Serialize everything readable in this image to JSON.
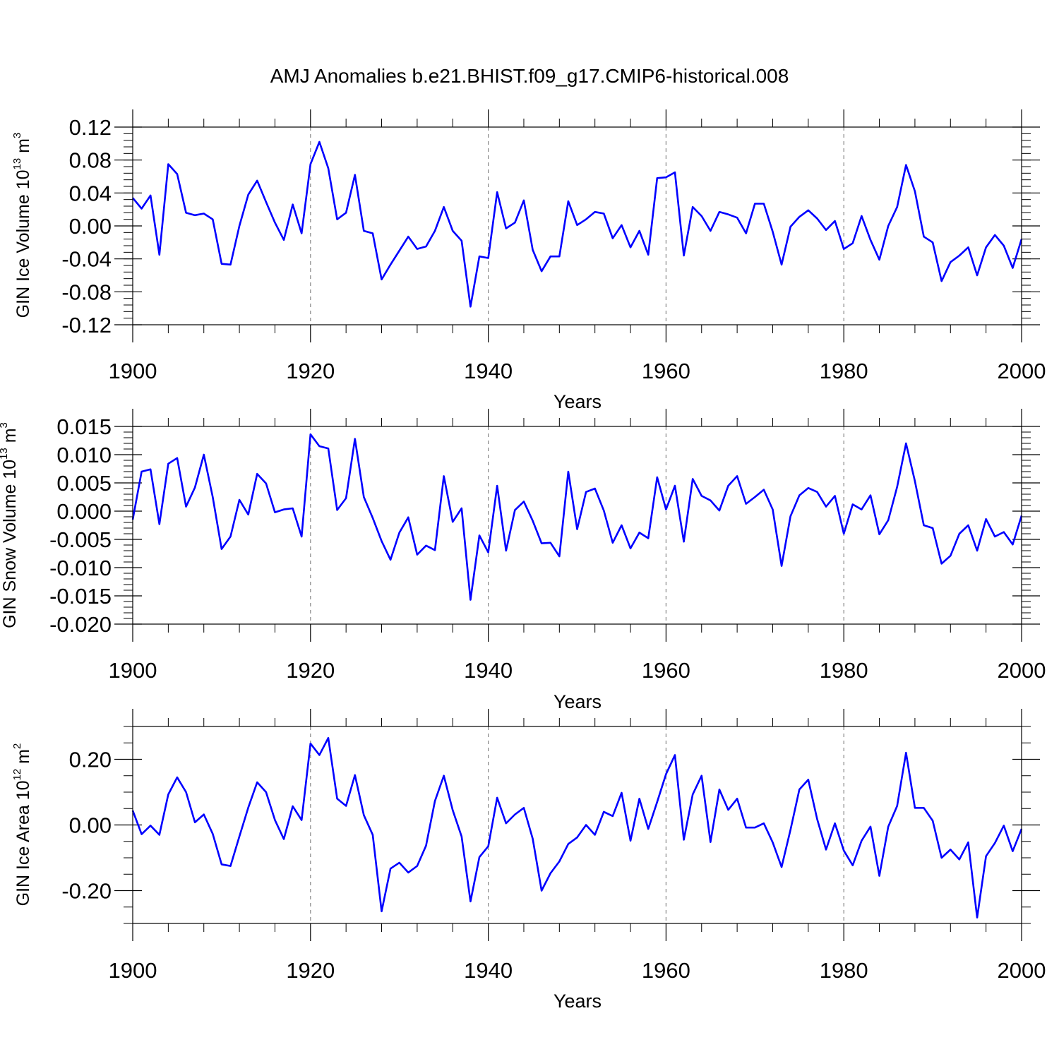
{
  "title": "AMJ Anomalies b.e21.BHIST.f09_g17.CMIP6-historical.008",
  "line_color": "#0000ff",
  "chart_data": [
    {
      "type": "line",
      "name": "ice-volume",
      "ylabel_main": "GIN Ice Volume 10",
      "ylabel_exp": "13",
      "ylabel_unit": " m",
      "ylabel_unit_exp": "3",
      "xlabel": "Years",
      "xlim": [
        1900,
        2000
      ],
      "ylim": [
        -0.12,
        0.12
      ],
      "yticks": [
        -0.12,
        -0.08,
        -0.04,
        0.0,
        0.04,
        0.08,
        0.12
      ],
      "ytick_labels": [
        "-0.12",
        "-0.08",
        "-0.04",
        "0.00",
        "0.04",
        "0.08",
        "0.12"
      ],
      "yminor_step": 0.008,
      "xticks": [
        1900,
        1920,
        1940,
        1960,
        1980,
        2000
      ],
      "xtick_labels": [
        "1900",
        "1920",
        "1940",
        "1960",
        "1980",
        "2000"
      ],
      "grid_x": [
        1920,
        1940,
        1960,
        1980
      ],
      "x_start": 1900,
      "values": [
        0.034,
        0.021,
        0.037,
        -0.035,
        0.075,
        0.063,
        0.016,
        0.013,
        0.015,
        0.008,
        -0.046,
        -0.047,
        0.0,
        0.038,
        0.055,
        0.029,
        0.004,
        -0.017,
        0.026,
        -0.009,
        0.075,
        0.102,
        0.07,
        0.008,
        0.016,
        0.062,
        -0.006,
        -0.009,
        -0.065,
        -0.047,
        -0.03,
        -0.013,
        -0.028,
        -0.025,
        -0.006,
        0.023,
        -0.006,
        -0.018,
        -0.098,
        -0.037,
        -0.039,
        0.041,
        -0.003,
        0.004,
        0.031,
        -0.029,
        -0.055,
        -0.037,
        -0.037,
        0.03,
        0.001,
        0.008,
        0.017,
        0.015,
        -0.015,
        0.001,
        -0.026,
        -0.006,
        -0.035,
        0.058,
        0.059,
        0.065,
        -0.036,
        0.023,
        0.012,
        -0.006,
        0.017,
        0.014,
        0.01,
        -0.009,
        0.027,
        0.027,
        -0.007,
        -0.047,
        -0.001,
        0.011,
        0.019,
        0.009,
        -0.005,
        0.006,
        -0.028,
        -0.021,
        0.012,
        -0.017,
        -0.041,
        0.0,
        0.023,
        0.074,
        0.042,
        -0.013,
        -0.02,
        -0.067,
        -0.044,
        -0.036,
        -0.026,
        -0.06,
        -0.026,
        -0.011,
        -0.024,
        -0.051,
        -0.016
      ]
    },
    {
      "type": "line",
      "name": "snow-volume",
      "ylabel_main": "GIN Snow Volume 10",
      "ylabel_exp": "13",
      "ylabel_unit": " m",
      "ylabel_unit_exp": "3",
      "xlabel": "Years",
      "xlim": [
        1900,
        2000
      ],
      "ylim": [
        -0.02,
        0.015
      ],
      "yticks": [
        -0.02,
        -0.015,
        -0.01,
        -0.005,
        0.0,
        0.005,
        0.01,
        0.015
      ],
      "ytick_labels": [
        "-0.020",
        "-0.015",
        "-0.010",
        "-0.005",
        "0.000",
        "0.005",
        "0.010",
        "0.015"
      ],
      "yminor_step": 0.001,
      "xticks": [
        1900,
        1920,
        1940,
        1960,
        1980,
        2000
      ],
      "xtick_labels": [
        "1900",
        "1920",
        "1940",
        "1960",
        "1980",
        "2000"
      ],
      "grid_x": [
        1920,
        1940,
        1960,
        1980
      ],
      "x_start": 1900,
      "values": [
        -0.0015,
        0.007,
        0.0074,
        -0.0023,
        0.0084,
        0.0094,
        0.0008,
        0.0042,
        0.01,
        0.0025,
        -0.0067,
        -0.0045,
        0.002,
        -0.0006,
        0.0066,
        0.0049,
        -0.0002,
        0.0003,
        0.0005,
        -0.0045,
        0.0136,
        0.0115,
        0.0111,
        0.0002,
        0.0023,
        0.0128,
        0.0025,
        -0.0012,
        -0.0053,
        -0.0086,
        -0.0038,
        -0.0011,
        -0.0077,
        -0.0061,
        -0.0069,
        0.0062,
        -0.0019,
        0.0005,
        -0.0157,
        -0.0043,
        -0.0073,
        0.0045,
        -0.007,
        0.0002,
        0.0017,
        -0.0017,
        -0.0057,
        -0.0056,
        -0.008,
        0.007,
        -0.0032,
        0.0034,
        0.004,
        0.0001,
        -0.0056,
        -0.0025,
        -0.0066,
        -0.0038,
        -0.0048,
        0.006,
        0.0003,
        0.0045,
        -0.0054,
        0.0057,
        0.0027,
        0.0019,
        0.0001,
        0.0045,
        0.0062,
        0.0013,
        0.0025,
        0.0038,
        0.0003,
        -0.0097,
        -0.0009,
        0.0028,
        0.0041,
        0.0034,
        0.0008,
        0.0027,
        -0.004,
        0.0012,
        0.0003,
        0.0028,
        -0.0041,
        -0.0016,
        0.0043,
        0.012,
        0.0053,
        -0.0025,
        -0.003,
        -0.0093,
        -0.0079,
        -0.004,
        -0.0025,
        -0.007,
        -0.0014,
        -0.0045,
        -0.0037,
        -0.0059,
        -0.0008
      ]
    },
    {
      "type": "line",
      "name": "ice-area",
      "ylabel_main": "GIN Ice Area 10",
      "ylabel_exp": "12",
      "ylabel_unit": " m",
      "ylabel_unit_exp": "2",
      "xlabel": "Years",
      "xlim": [
        1900,
        2000
      ],
      "ylim": [
        -0.3,
        0.3
      ],
      "yticks": [
        -0.2,
        0.0,
        0.2
      ],
      "ytick_labels": [
        "-0.20",
        "0.00",
        "0.20"
      ],
      "yminor_step": 0.05,
      "xticks": [
        1900,
        1920,
        1940,
        1960,
        1980,
        2000
      ],
      "xtick_labels": [
        "1900",
        "1920",
        "1940",
        "1960",
        "1980",
        "2000"
      ],
      "grid_x": [
        1920,
        1940,
        1960,
        1980
      ],
      "x_start": 1900,
      "values": [
        0.044,
        -0.028,
        -0.002,
        -0.03,
        0.093,
        0.145,
        0.1,
        0.008,
        0.032,
        -0.027,
        -0.12,
        -0.125,
        -0.035,
        0.053,
        0.13,
        0.1,
        0.015,
        -0.043,
        0.057,
        0.015,
        0.248,
        0.213,
        0.265,
        0.08,
        0.058,
        0.152,
        0.03,
        -0.03,
        -0.263,
        -0.133,
        -0.115,
        -0.145,
        -0.125,
        -0.063,
        0.073,
        0.15,
        0.045,
        -0.035,
        -0.233,
        -0.098,
        -0.065,
        0.083,
        0.005,
        0.032,
        0.052,
        -0.042,
        -0.2,
        -0.147,
        -0.111,
        -0.058,
        -0.038,
        0.0,
        -0.03,
        0.04,
        0.027,
        0.098,
        -0.048,
        0.08,
        -0.012,
        0.07,
        0.155,
        0.213,
        -0.045,
        0.093,
        0.15,
        -0.052,
        0.108,
        0.046,
        0.08,
        -0.008,
        -0.008,
        0.005,
        -0.053,
        -0.128,
        -0.015,
        0.108,
        0.138,
        0.018,
        -0.075,
        0.005,
        -0.078,
        -0.123,
        -0.048,
        -0.005,
        -0.155,
        -0.005,
        0.058,
        0.22,
        0.052,
        0.052,
        0.013,
        -0.1,
        -0.075,
        -0.105,
        -0.053,
        -0.282,
        -0.095,
        -0.055,
        -0.002,
        -0.08,
        -0.012
      ]
    }
  ]
}
